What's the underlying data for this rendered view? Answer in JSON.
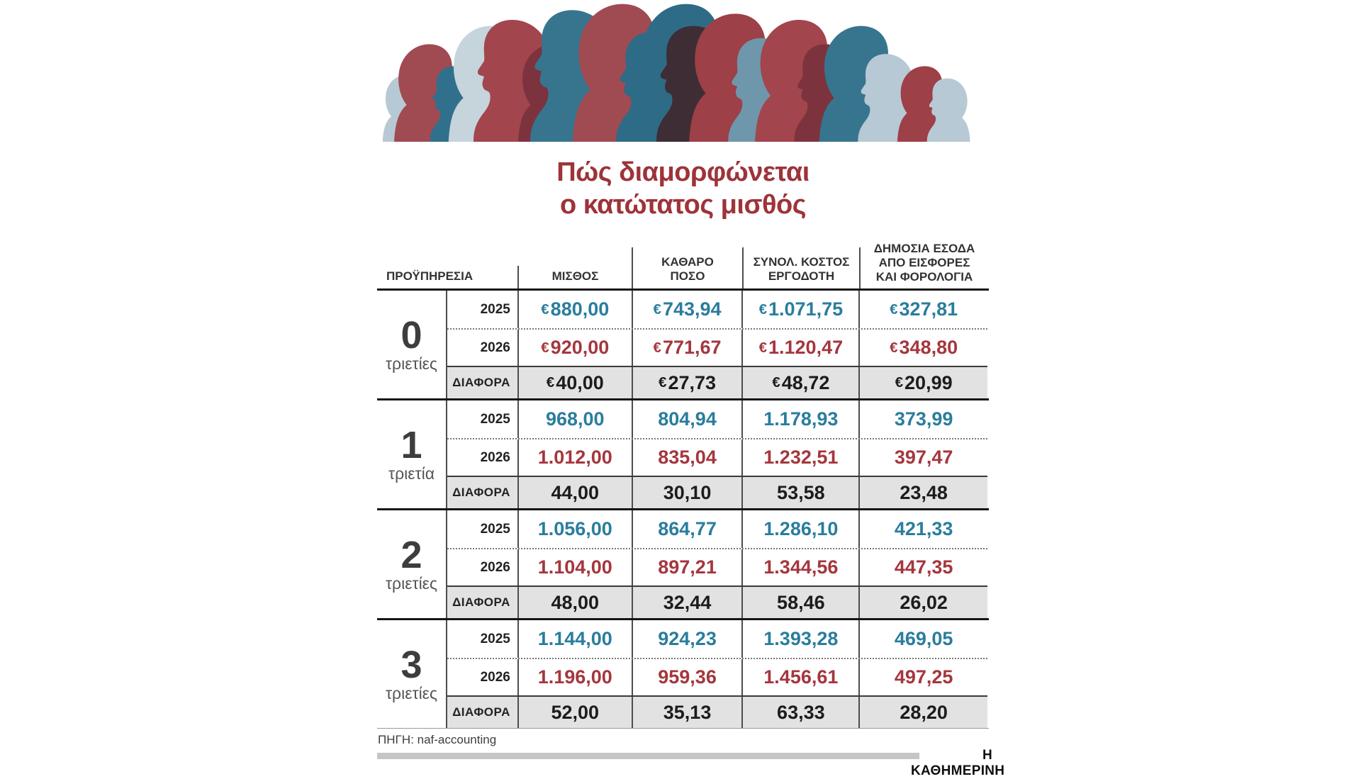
{
  "title": {
    "line1": "Πώς διαμορφώνεται",
    "line2": "ο κατώτατος μισθός"
  },
  "chart_data": {
    "type": "table",
    "title": "Πώς διαμορφώνεται ο κατώτατος μισθός",
    "header": {
      "experience": "ΠΡΟΫΠΗΡΕΣΙΑ",
      "salary": "ΜΙΣΘΟΣ",
      "net_amount": "ΚΑΘΑΡΟ\nΠΟΣΟ",
      "employer_cost": "ΣΥΝΟΛ. ΚΟΣΤΟΣ\nΕΡΓΟΔΟΤΗ",
      "public_revenue": "ΔΗΜΟΣΙΑ ΕΣΟΔΑ\nΑΠΟ ΕΙΣΦΟΡΕΣ\nΚΑΙ ΦΟΡΟΛΟΓΙΑ"
    },
    "row_labels": {
      "r2025": "2025",
      "r2026": "2026",
      "diff": "ΔΙΑΦΟΡΑ"
    },
    "groups": [
      {
        "number": "0",
        "unit": "τριετίες",
        "values_2025": [
          "€880,00",
          "€743,94",
          "€1.071,75",
          "€327,81"
        ],
        "values_2026": [
          "€920,00",
          "€771,67",
          "€1.120,47",
          "€348,80"
        ],
        "values_diff": [
          "€40,00",
          "€27,73",
          "€48,72",
          "€20,99"
        ]
      },
      {
        "number": "1",
        "unit": "τριετία",
        "values_2025": [
          "968,00",
          "804,94",
          "1.178,93",
          "373,99"
        ],
        "values_2026": [
          "1.012,00",
          "835,04",
          "1.232,51",
          "397,47"
        ],
        "values_diff": [
          "44,00",
          "30,10",
          "53,58",
          "23,48"
        ]
      },
      {
        "number": "2",
        "unit": "τριετίες",
        "values_2025": [
          "1.056,00",
          "864,77",
          "1.286,10",
          "421,33"
        ],
        "values_2026": [
          "1.104,00",
          "897,21",
          "1.344,56",
          "447,35"
        ],
        "values_diff": [
          "48,00",
          "32,44",
          "58,46",
          "26,02"
        ]
      },
      {
        "number": "3",
        "unit": "τριετίες",
        "values_2025": [
          "1.144,00",
          "924,23",
          "1.393,28",
          "469,05"
        ],
        "values_2026": [
          "1.196,00",
          "959,36",
          "1.456,61",
          "497,25"
        ],
        "values_diff": [
          "52,00",
          "35,13",
          "63,33",
          "28,20"
        ]
      }
    ]
  },
  "footer": {
    "source": "ΠΗΓΗ: naf-accounting",
    "brand": "Η ΚΑΘΗΜΕΡΙΝΗ"
  },
  "colors": {
    "title_red": "#9e3339",
    "value_2025_teal": "#2a7d9d",
    "value_2026_red": "#a5363d",
    "diff_row_bg": "#e2e2e2",
    "line_dark": "#161616"
  }
}
